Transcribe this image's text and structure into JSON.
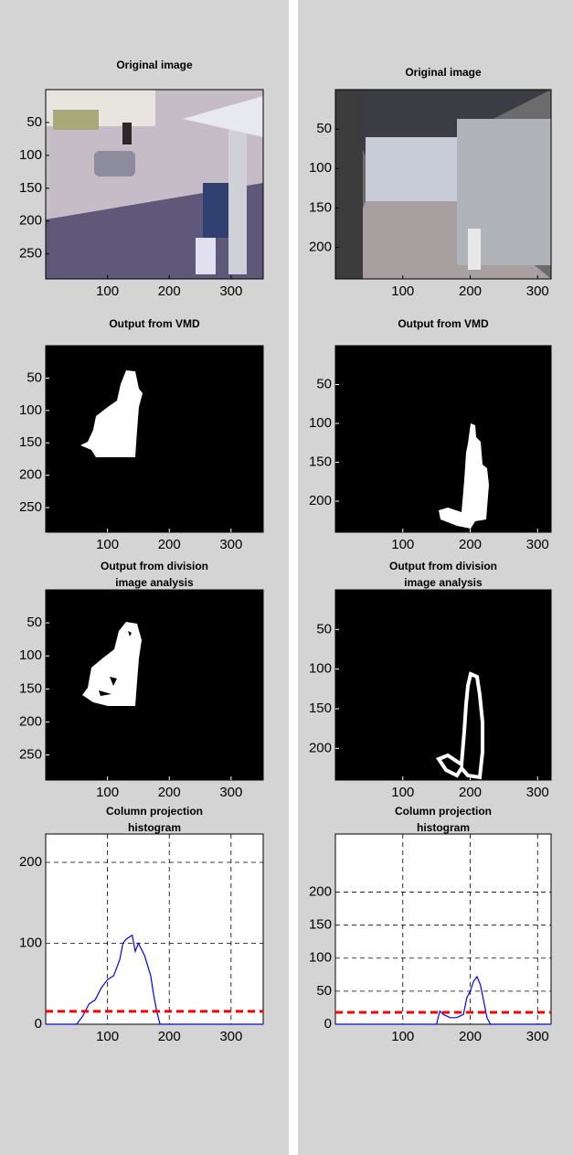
{
  "chart_data": [
    {
      "type": "image",
      "content": "photo",
      "title": "Original image",
      "xlim": [
        0,
        352
      ],
      "ylim": [
        0,
        288
      ],
      "xticks": [
        100,
        200,
        300
      ],
      "yticks": [
        50,
        100,
        150,
        200,
        250
      ]
    },
    {
      "type": "image",
      "content": "photo",
      "title": "Original image",
      "xlim": [
        0,
        320
      ],
      "ylim": [
        0,
        240
      ],
      "xticks": [
        100,
        200,
        300
      ],
      "yticks": [
        50,
        100,
        150,
        200
      ]
    },
    {
      "type": "image",
      "content": "mask",
      "title": "Output from VMD",
      "xlim": [
        0,
        352
      ],
      "ylim": [
        0,
        288
      ],
      "xticks": [
        100,
        200,
        300
      ],
      "yticks": [
        50,
        100,
        150,
        200,
        250
      ]
    },
    {
      "type": "image",
      "content": "mask",
      "title": "Output from VMD",
      "xlim": [
        0,
        320
      ],
      "ylim": [
        0,
        240
      ],
      "xticks": [
        100,
        200,
        300
      ],
      "yticks": [
        50,
        100,
        150,
        200
      ]
    },
    {
      "type": "image",
      "content": "mask",
      "title": [
        "Output from division",
        "image analysis"
      ],
      "xlim": [
        0,
        352
      ],
      "ylim": [
        0,
        288
      ],
      "xticks": [
        100,
        200,
        300
      ],
      "yticks": [
        50,
        100,
        150,
        200,
        250
      ]
    },
    {
      "type": "image",
      "content": "mask",
      "title": [
        "Output from division",
        "image analysis"
      ],
      "xlim": [
        0,
        320
      ],
      "ylim": [
        0,
        240
      ],
      "xticks": [
        100,
        200,
        300
      ],
      "yticks": [
        50,
        100,
        150,
        200
      ]
    },
    {
      "type": "line",
      "title": [
        "Column projection",
        "histogram"
      ],
      "xlim": [
        0,
        352
      ],
      "ylim": [
        0,
        235
      ],
      "xticks": [
        100,
        200,
        300
      ],
      "yticks": [
        0,
        100,
        200
      ],
      "grid": true,
      "x": [
        0,
        50,
        60,
        70,
        80,
        90,
        100,
        110,
        120,
        125,
        130,
        140,
        145,
        150,
        160,
        170,
        175,
        180,
        185,
        352
      ],
      "series": [
        {
          "color": "#0000ff",
          "values": [
            0,
            0,
            10,
            25,
            30,
            45,
            55,
            60,
            80,
            100,
            105,
            110,
            90,
            100,
            85,
            60,
            35,
            15,
            0,
            0
          ]
        }
      ],
      "threshold": 16,
      "threshold_color": "#ff0000"
    },
    {
      "type": "line",
      "title": [
        "Column projection",
        "histogram"
      ],
      "xlim": [
        0,
        320
      ],
      "ylim": [
        0,
        288
      ],
      "xticks": [
        100,
        200,
        300
      ],
      "yticks": [
        0,
        50,
        100,
        150,
        200
      ],
      "grid": true,
      "x": [
        0,
        150,
        155,
        160,
        170,
        180,
        190,
        195,
        200,
        205,
        210,
        215,
        220,
        225,
        230,
        320
      ],
      "series": [
        {
          "color": "#0000ff",
          "values": [
            0,
            0,
            20,
            15,
            10,
            10,
            15,
            40,
            50,
            65,
            72,
            60,
            35,
            10,
            0,
            0
          ]
        }
      ],
      "threshold": 18,
      "threshold_color": "#ff0000"
    }
  ]
}
